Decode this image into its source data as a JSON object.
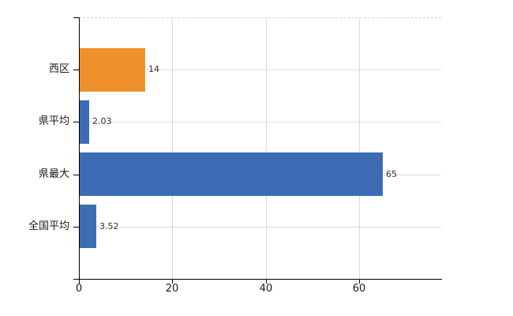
{
  "chart_data": {
    "type": "bar",
    "orientation": "horizontal",
    "title": "",
    "xlabel": "",
    "ylabel": "",
    "categories": [
      "西区",
      "県平均",
      "県最大",
      "全国平均"
    ],
    "values": [
      14,
      2.03,
      65,
      3.52
    ],
    "value_labels": [
      "14",
      "2.03",
      "65",
      "3.52"
    ],
    "bar_colors": [
      "#F0902D",
      "#3C6DB4",
      "#3C6DB4",
      "#3C6DB4"
    ],
    "xlim": [
      0,
      77.6
    ],
    "xticks": [
      0,
      20,
      40,
      60
    ],
    "xtick_labels": [
      "0",
      "20",
      "40",
      "60"
    ],
    "grid": true,
    "legend": "none",
    "colors": {
      "gridline": "#DCDCDC",
      "plot_top_border": "#D4D4D4",
      "axis": "#000000",
      "category_label": "#1A1A1A",
      "tick_label": "#1A1A1A",
      "value_label": "#333333",
      "background": "#FFFFFF"
    }
  }
}
